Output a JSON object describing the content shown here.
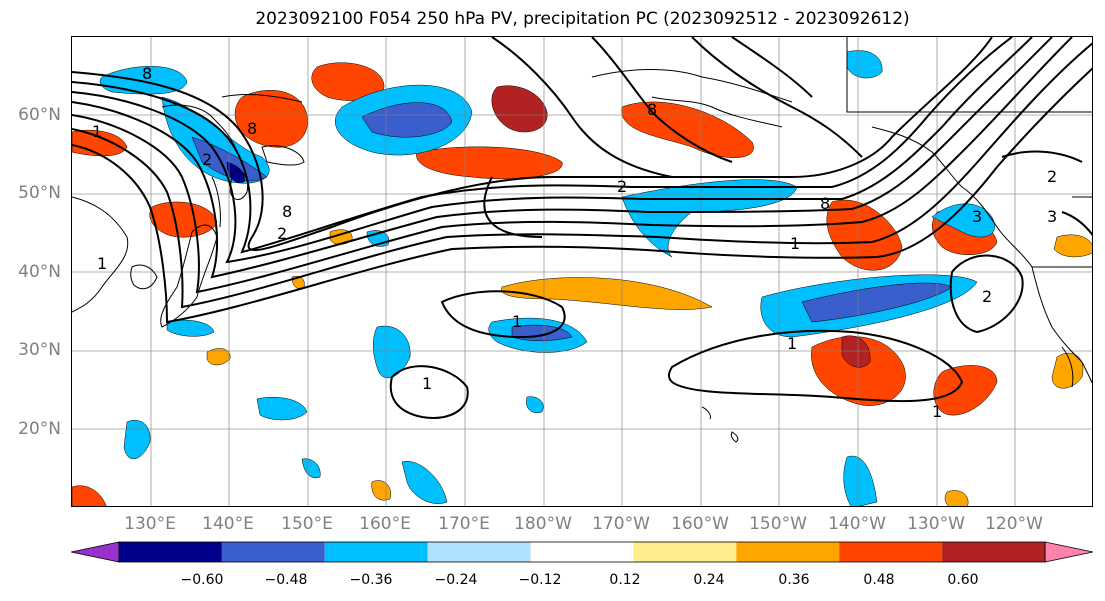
{
  "title": "2023092100 F054 250 hPa PV, precipitation PC (2023092512 - 2023092612)",
  "lat_labels": [
    {
      "text": "60°N",
      "lat": 60
    },
    {
      "text": "50°N",
      "lat": 50
    },
    {
      "text": "40°N",
      "lat": 40
    },
    {
      "text": "30°N",
      "lat": 30
    },
    {
      "text": "20°N",
      "lat": 20
    }
  ],
  "lon_labels": [
    {
      "text": "130°E",
      "lon": 130
    },
    {
      "text": "140°E",
      "lon": 140
    },
    {
      "text": "150°E",
      "lon": 150
    },
    {
      "text": "160°E",
      "lon": 160
    },
    {
      "text": "170°E",
      "lon": 170
    },
    {
      "text": "180°W",
      "lon": 180
    },
    {
      "text": "170°W",
      "lon": 190
    },
    {
      "text": "160°W",
      "lon": 200
    },
    {
      "text": "150°W",
      "lon": 210
    },
    {
      "text": "140°W",
      "lon": 220
    },
    {
      "text": "130°W",
      "lon": 230
    },
    {
      "text": "120°W",
      "lon": 240
    }
  ],
  "map_extent": {
    "lon_min": 120,
    "lon_max": 250,
    "lat_min": 10,
    "lat_max": 70
  },
  "colorbar": {
    "colors": [
      "#9932cc",
      "#00008b",
      "#3a5fcd",
      "#00bfff",
      "#b0e2ff",
      "#ffffff",
      "#ffec8b",
      "#ffa500",
      "#ff4500",
      "#b22222",
      "#ff82ab"
    ],
    "ticks": [
      "−0.60",
      "−0.48",
      "−0.36",
      "−0.24",
      "−0.12",
      "0.12",
      "0.24",
      "0.36",
      "0.48",
      "0.60"
    ]
  },
  "contour_labels": [
    "8",
    "8",
    "1",
    "2",
    "8",
    "2",
    "8",
    "8",
    "1",
    "2",
    "2",
    "3",
    "3",
    "1",
    "1",
    "1",
    "1",
    "1",
    "2"
  ]
}
